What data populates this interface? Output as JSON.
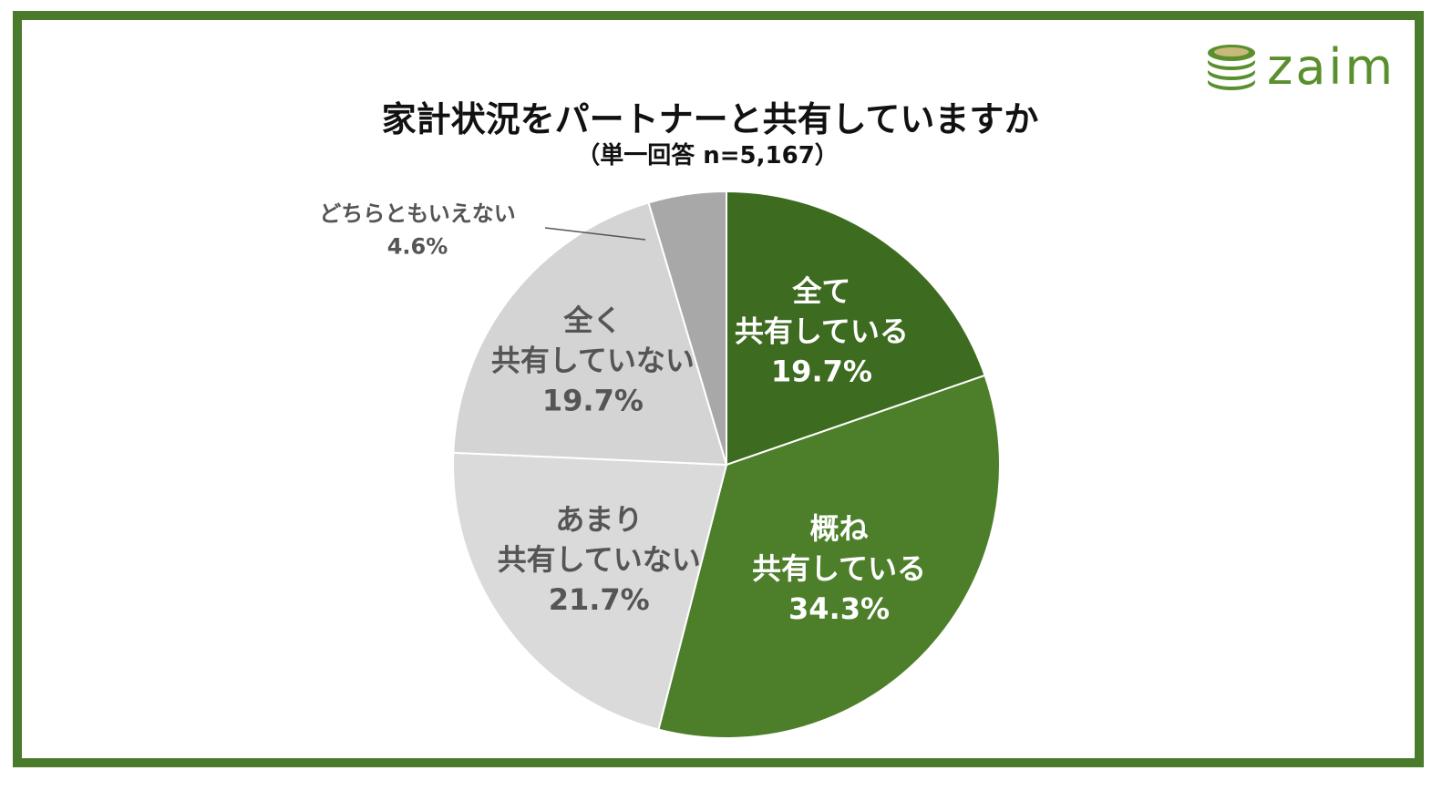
{
  "logo": {
    "text": "zaim",
    "icon": "coin-stack-icon",
    "color": "#5a8f2e"
  },
  "frame_color": "#4a7a2c",
  "chart_data": {
    "type": "pie",
    "title": "家計状況をパートナーと共有していますか",
    "subtitle": "（単一回答 n=5,167）",
    "start": "top, clockwise",
    "slices": [
      {
        "lines": [
          "全て",
          "共有している"
        ],
        "value": 19.7,
        "value_label": "19.7%",
        "color": "#3d6b20",
        "text_color": "#ffffff"
      },
      {
        "lines": [
          "概ね",
          "共有している"
        ],
        "value": 34.3,
        "value_label": "34.3%",
        "color": "#4d7f2a",
        "text_color": "#ffffff"
      },
      {
        "lines": [
          "あまり",
          "共有していない"
        ],
        "value": 21.7,
        "value_label": "21.7%",
        "color": "#dadada",
        "text_color": "#555555"
      },
      {
        "lines": [
          "全く",
          "共有していない"
        ],
        "value": 19.7,
        "value_label": "19.7%",
        "color": "#d4d4d4",
        "text_color": "#555555"
      },
      {
        "lines": [
          "どちらともいえない"
        ],
        "value": 4.6,
        "value_label": "4.6%",
        "color": "#a8a8a8",
        "text_color": "#555555",
        "callout": true
      }
    ]
  }
}
